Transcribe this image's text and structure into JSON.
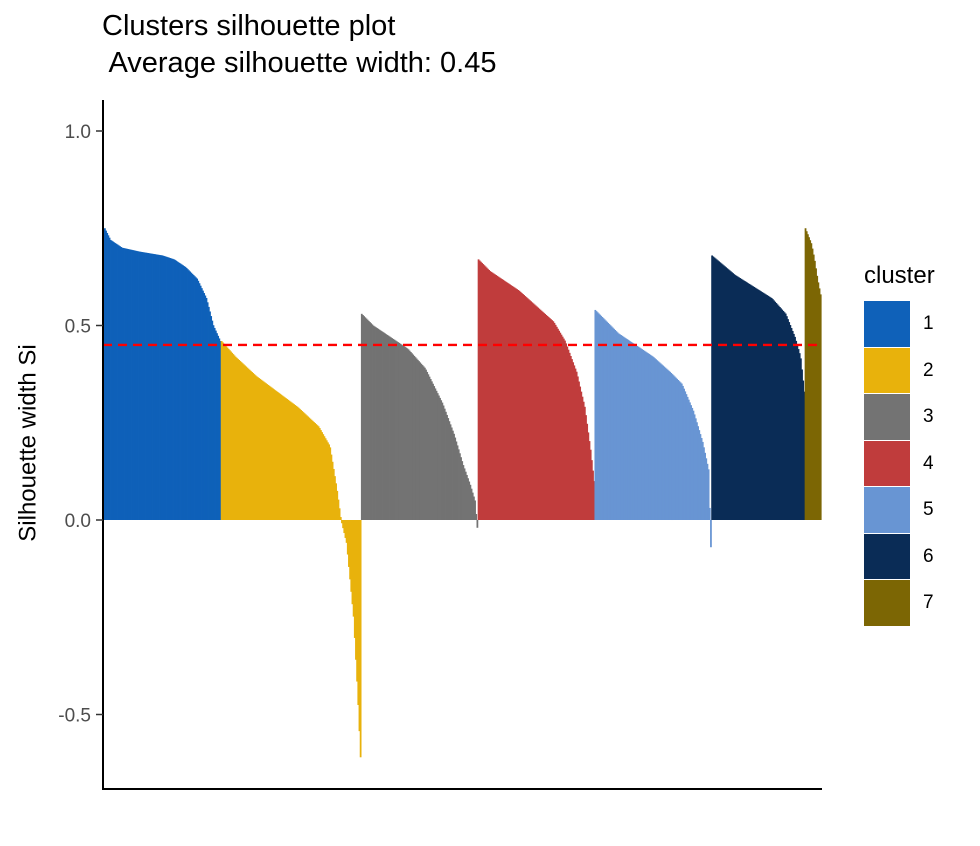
{
  "chart_data": {
    "type": "bar",
    "title": "Clusters silhouette plot",
    "subtitle": " Average silhouette width: 0.45",
    "xlabel": "",
    "ylabel": "Silhouette width Si",
    "ylim": [
      -0.65,
      1.05
    ],
    "yticks": [
      "-0.5",
      "0.0",
      "0.5",
      "1.0"
    ],
    "ytick_values": [
      -0.5,
      0.0,
      0.5,
      1.0
    ],
    "average_silhouette": 0.45,
    "reference_line_color": "#ff0000",
    "grid": false,
    "legend": {
      "title": "cluster",
      "position": "right"
    },
    "series": [
      {
        "name": "1",
        "color": "#0f61b9",
        "count": 100,
        "profile": [
          [
            0,
            0.75
          ],
          [
            0.05,
            0.72
          ],
          [
            0.15,
            0.7
          ],
          [
            0.3,
            0.69
          ],
          [
            0.5,
            0.68
          ],
          [
            0.6,
            0.67
          ],
          [
            0.7,
            0.65
          ],
          [
            0.8,
            0.62
          ],
          [
            0.88,
            0.57
          ],
          [
            0.94,
            0.5
          ],
          [
            1,
            0.46
          ]
        ]
      },
      {
        "name": "2",
        "color": "#e8b20c",
        "count": 120,
        "profile": [
          [
            0,
            0.46
          ],
          [
            0.1,
            0.42
          ],
          [
            0.25,
            0.37
          ],
          [
            0.4,
            0.33
          ],
          [
            0.55,
            0.29
          ],
          [
            0.7,
            0.24
          ],
          [
            0.78,
            0.19
          ],
          [
            0.83,
            0.08
          ],
          [
            0.86,
            0.0
          ],
          [
            0.9,
            -0.06
          ],
          [
            0.95,
            -0.25
          ],
          [
            0.98,
            -0.45
          ],
          [
            1,
            -0.61
          ]
        ]
      },
      {
        "name": "3",
        "color": "#737373",
        "count": 100,
        "profile": [
          [
            0,
            0.53
          ],
          [
            0.1,
            0.5
          ],
          [
            0.25,
            0.47
          ],
          [
            0.4,
            0.44
          ],
          [
            0.55,
            0.39
          ],
          [
            0.7,
            0.3
          ],
          [
            0.8,
            0.22
          ],
          [
            0.88,
            0.14
          ],
          [
            0.94,
            0.09
          ],
          [
            0.98,
            0.05
          ],
          [
            1,
            -0.02
          ]
        ]
      },
      {
        "name": "4",
        "color": "#c03c3c",
        "count": 100,
        "profile": [
          [
            0,
            0.67
          ],
          [
            0.1,
            0.64
          ],
          [
            0.2,
            0.62
          ],
          [
            0.35,
            0.59
          ],
          [
            0.5,
            0.55
          ],
          [
            0.65,
            0.51
          ],
          [
            0.75,
            0.46
          ],
          [
            0.85,
            0.38
          ],
          [
            0.92,
            0.29
          ],
          [
            0.97,
            0.18
          ],
          [
            1,
            0.1
          ]
        ]
      },
      {
        "name": "5",
        "color": "#6895d3",
        "count": 100,
        "profile": [
          [
            0,
            0.54
          ],
          [
            0.1,
            0.51
          ],
          [
            0.2,
            0.48
          ],
          [
            0.35,
            0.45
          ],
          [
            0.5,
            0.42
          ],
          [
            0.65,
            0.38
          ],
          [
            0.75,
            0.35
          ],
          [
            0.85,
            0.28
          ],
          [
            0.93,
            0.2
          ],
          [
            0.98,
            0.13
          ],
          [
            1,
            -0.07
          ]
        ]
      },
      {
        "name": "6",
        "color": "#0a2c56",
        "count": 80,
        "profile": [
          [
            0,
            0.68
          ],
          [
            0.1,
            0.66
          ],
          [
            0.25,
            0.63
          ],
          [
            0.45,
            0.6
          ],
          [
            0.65,
            0.57
          ],
          [
            0.8,
            0.53
          ],
          [
            0.9,
            0.47
          ],
          [
            0.96,
            0.42
          ],
          [
            1,
            0.33
          ]
        ]
      },
      {
        "name": "7",
        "color": "#7c6604",
        "count": 14,
        "profile": [
          [
            0,
            0.75
          ],
          [
            0.2,
            0.73
          ],
          [
            0.4,
            0.71
          ],
          [
            0.6,
            0.67
          ],
          [
            0.8,
            0.62
          ],
          [
            1,
            0.58
          ]
        ]
      }
    ]
  }
}
